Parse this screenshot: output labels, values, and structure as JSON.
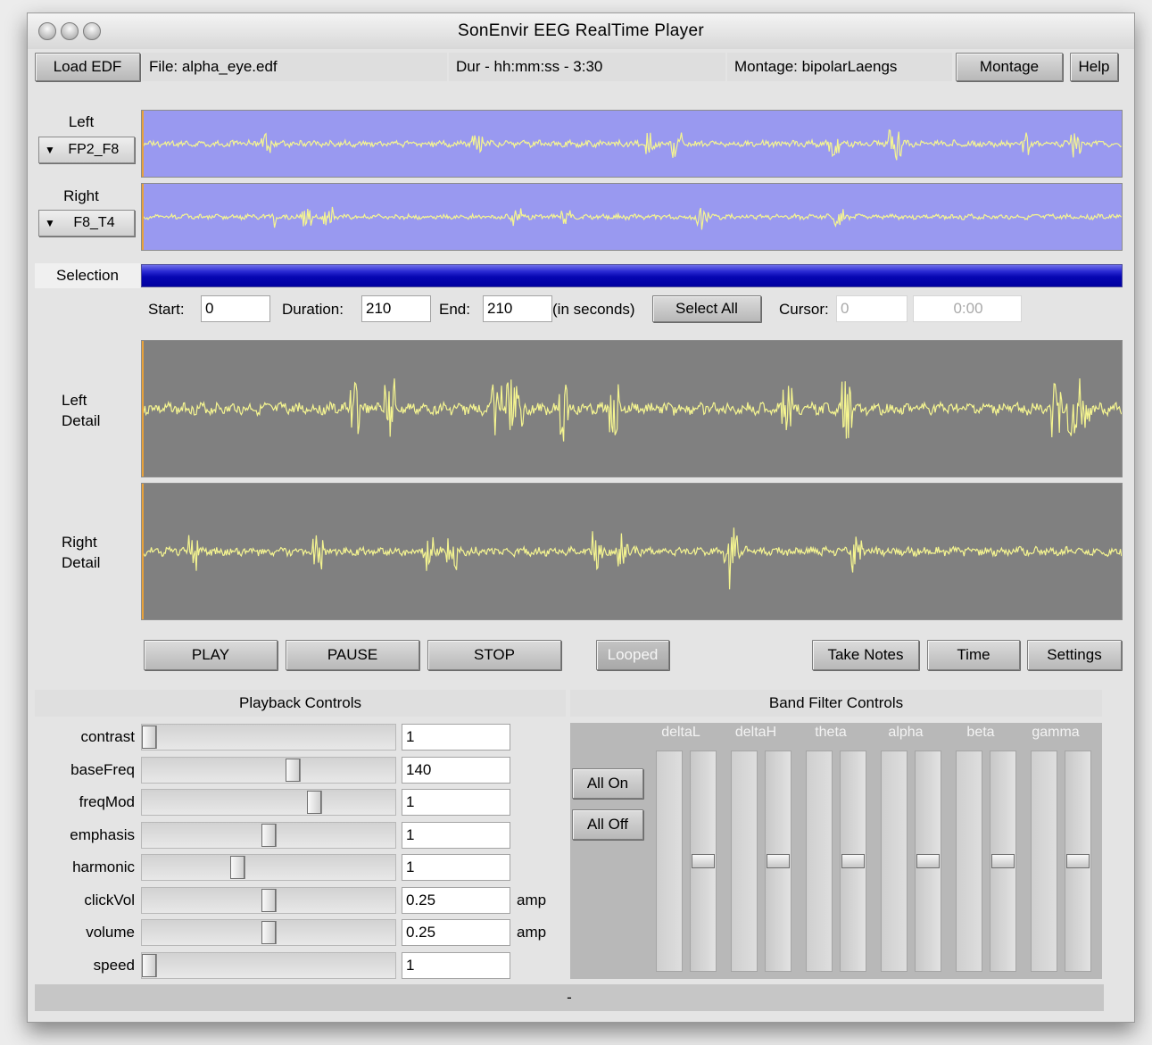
{
  "window": {
    "title": "SonEnvir EEG RealTime Player"
  },
  "toolbar": {
    "load_edf": "Load EDF",
    "file_text": "File:  alpha_eye.edf",
    "duration_text": "Dur - hh:mm:ss - 3:30",
    "montage_text": "Montage:  bipolarLaengs",
    "montage_button": "Montage",
    "help_button": "Help"
  },
  "channels": {
    "left_label": "Left",
    "left_value": "FP2_F8",
    "right_label": "Right",
    "right_value": "F8_T4",
    "arrow": "▼"
  },
  "selection": {
    "label": "Selection",
    "start_label": "Start:",
    "start_value": "0",
    "duration_label": "Duration:",
    "duration_value": "210",
    "end_label": "End:",
    "end_value": "210",
    "unit_text": "(in seconds)",
    "select_all": "Select All",
    "cursor_label": "Cursor:",
    "cursor_value": "0",
    "cursor_time": "0:00"
  },
  "detail": {
    "left_line1": "Left",
    "left_line2": "Detail",
    "right_line1": "Right",
    "right_line2": "Detail"
  },
  "transport": {
    "play": "PLAY",
    "pause": "PAUSE",
    "stop": "STOP",
    "looped": "Looped",
    "take_notes": "Take Notes",
    "time": "Time",
    "settings": "Settings"
  },
  "playback": {
    "title": "Playback Controls",
    "rows": [
      {
        "label": "contrast",
        "value": "1",
        "unit": "",
        "level": 0.0
      },
      {
        "label": "baseFreq",
        "value": "140",
        "unit": "",
        "level": 0.6
      },
      {
        "label": "freqMod",
        "value": "1",
        "unit": "",
        "level": 0.69
      },
      {
        "label": "emphasis",
        "value": "1",
        "unit": "",
        "level": 0.5
      },
      {
        "label": "harmonic",
        "value": "1",
        "unit": "",
        "level": 0.37
      },
      {
        "label": "clickVol",
        "value": "0.25",
        "unit": "amp",
        "level": 0.5
      },
      {
        "label": "volume",
        "value": "0.25",
        "unit": "amp",
        "level": 0.5
      },
      {
        "label": "speed",
        "value": "1",
        "unit": "",
        "level": 0.0
      }
    ]
  },
  "bands": {
    "title": "Band Filter Controls",
    "all_on": "All On",
    "all_off": "All Off",
    "names": [
      "deltaL",
      "deltaH",
      "theta",
      "alpha",
      "beta",
      "gamma"
    ],
    "levels": [
      0.5,
      0.5,
      0.5,
      0.5,
      0.5,
      0.5
    ]
  },
  "status": {
    "text": "-"
  },
  "colors": {
    "overview_bg": "#9999f0",
    "detail_bg": "#808080",
    "trace": "#f5f590",
    "selection_bar": "#0000a0"
  }
}
